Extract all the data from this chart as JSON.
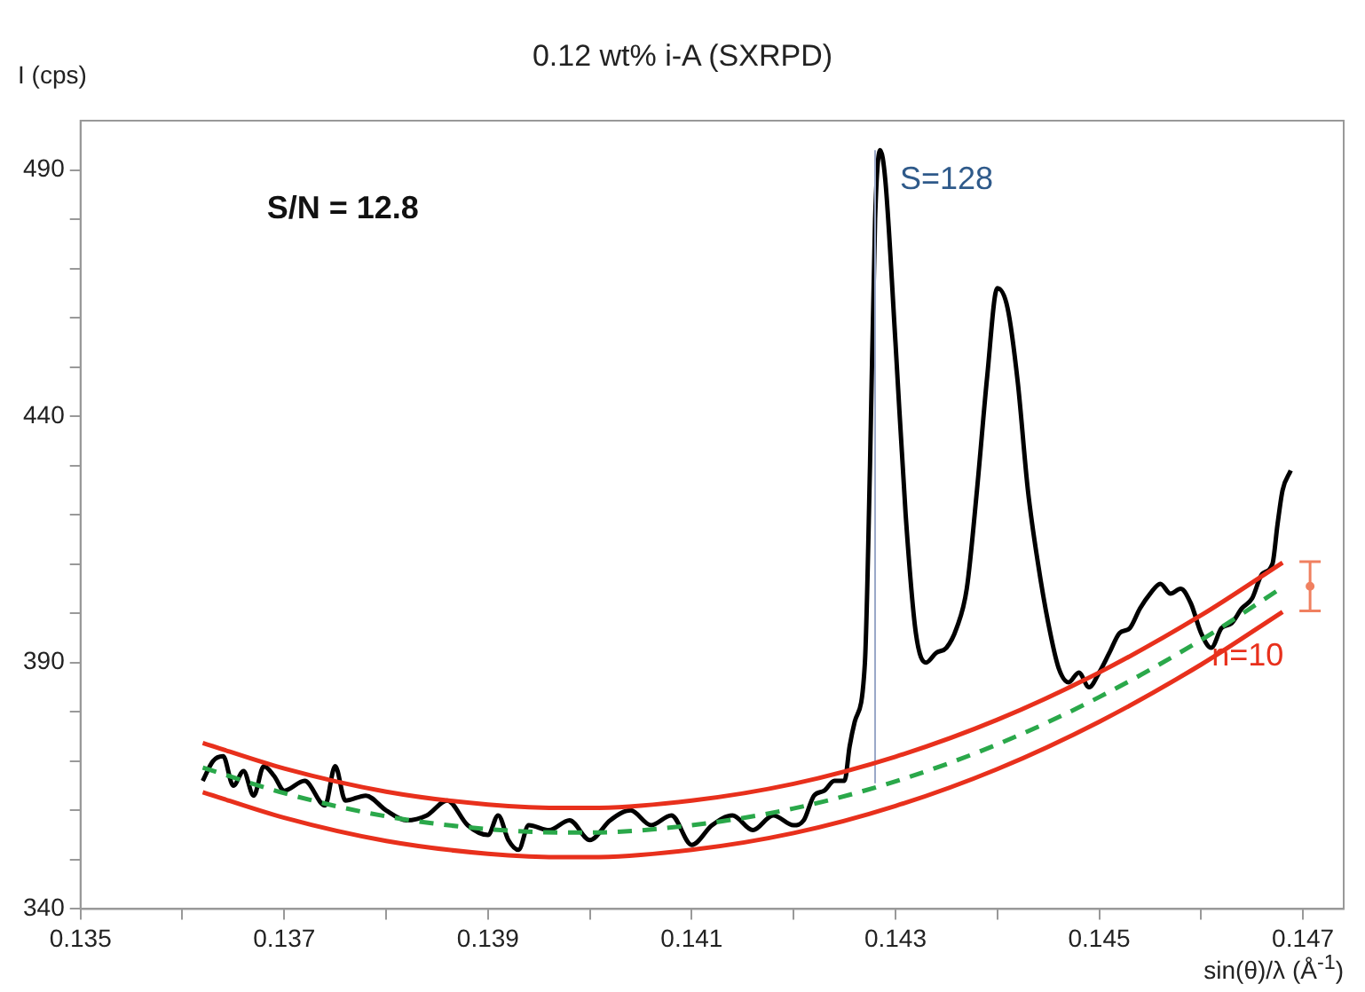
{
  "chart_data": {
    "type": "line",
    "title": "0.12 wt% i-A (SXRPD)",
    "xlabel": "sin(θ)/λ (Å$^{-1}$)",
    "ylabel": "I (cps)",
    "xlim": [
      0.135,
      0.1474
    ],
    "ylim": [
      340,
      500
    ],
    "xticks": [
      0.135,
      {
        "value": 0.136,
        "label": null
      },
      0.137,
      {
        "value": 0.138,
        "label": null
      },
      0.139,
      {
        "value": 0.14,
        "label": null
      },
      0.141,
      {
        "value": 0.142,
        "label": null
      },
      0.143,
      {
        "value": 0.144,
        "label": null
      },
      0.145,
      {
        "value": 0.146,
        "label": null
      },
      0.147
    ],
    "yticks": [
      340,
      {
        "value": 350,
        "label": null
      },
      {
        "value": 360,
        "label": null
      },
      {
        "value": 370,
        "label": null
      },
      {
        "value": 380,
        "label": null
      },
      390,
      {
        "value": 400,
        "label": null
      },
      {
        "value": 410,
        "label": null
      },
      {
        "value": 420,
        "label": null
      },
      {
        "value": 430,
        "label": null
      },
      440,
      {
        "value": 450,
        "label": null
      },
      {
        "value": 460,
        "label": null
      },
      {
        "value": 470,
        "label": null
      },
      {
        "value": 480,
        "label": null
      },
      490
    ],
    "grid": false,
    "legend": false,
    "marker": "none",
    "series": [
      {
        "color": "#e8301c",
        "x": [
          0.1362,
          0.137,
          0.138,
          0.139,
          0.1398,
          0.14,
          0.141,
          0.142,
          0.143,
          0.144,
          0.145,
          0.146,
          0.1468
        ],
        "values": [
          373.7,
          368.5,
          363.8,
          361.2,
          360.5,
          360.5,
          362,
          365.4,
          370.9,
          378.4,
          388,
          399.6,
          410.3
        ]
      },
      {
        "color": "#e8301c",
        "x": [
          0.1362,
          0.137,
          0.138,
          0.139,
          0.1398,
          0.14,
          0.141,
          0.142,
          0.143,
          0.144,
          0.145,
          0.146,
          0.1468
        ],
        "values": [
          363.7,
          358.5,
          353.8,
          351.2,
          350.5,
          350.5,
          352,
          355.4,
          360.9,
          368.4,
          378,
          389.6,
          400.3
        ]
      },
      {
        "color": "#2aa84a",
        "line_style": "dashed",
        "x": [
          0.1362,
          0.137,
          0.138,
          0.139,
          0.1398,
          0.14,
          0.141,
          0.142,
          0.143,
          0.144,
          0.145,
          0.146,
          0.1468
        ],
        "values": [
          368.7,
          363.5,
          358.8,
          356.2,
          355.5,
          355.5,
          357,
          360.4,
          365.9,
          373.4,
          383,
          394.6,
          405.3
        ]
      },
      {
        "color": "#9aa8c8",
        "x": [
          0.1428,
          0.1428
        ],
        "values": [
          365.5,
          494
        ]
      },
      {
        "color": "#000000",
        "x": [
          0.1362,
          0.1363,
          0.1364,
          0.1365,
          0.1366,
          0.1367,
          0.1368,
          0.1369,
          0.137,
          0.1372,
          0.1374,
          0.1375,
          0.1376,
          0.1378,
          0.138,
          0.1382,
          0.1384,
          0.1386,
          0.1388,
          0.139,
          0.1391,
          0.1392,
          0.1393,
          0.1394,
          0.1396,
          0.1398,
          0.14,
          0.1402,
          0.1404,
          0.1406,
          0.1408,
          0.141,
          0.1412,
          0.1414,
          0.1416,
          0.1418,
          0.142,
          0.1421,
          0.1422,
          0.1423,
          0.1424,
          0.1425,
          0.14255,
          0.1426,
          0.1427,
          0.14275,
          0.1428,
          0.14285,
          0.1429,
          0.143,
          0.1431,
          0.1432,
          0.1433,
          0.1434,
          0.1435,
          0.1436,
          0.1437,
          0.1438,
          0.1439,
          0.144,
          0.1441,
          0.1442,
          0.1443,
          0.1444,
          0.1445,
          0.1446,
          0.1447,
          0.1448,
          0.1449,
          0.145,
          0.1451,
          0.1452,
          0.1453,
          0.1454,
          0.1455,
          0.1456,
          0.1457,
          0.1458,
          0.1459,
          0.146,
          0.1461,
          0.1462,
          0.1463,
          0.1464,
          0.1465,
          0.1466,
          0.1467,
          0.14675,
          0.1468,
          0.14688
        ],
        "values": [
          366,
          370,
          371,
          365,
          368,
          363,
          369,
          367,
          364,
          366,
          361,
          369,
          362,
          363,
          360,
          358,
          359,
          362,
          357,
          355,
          359,
          354,
          352,
          357,
          356,
          358,
          354,
          358,
          360,
          357,
          359,
          353,
          357,
          359,
          356,
          359,
          357,
          358,
          363,
          364,
          366,
          366,
          373,
          378,
          390,
          430,
          480,
          494,
          488,
          455,
          420,
          396,
          390,
          392,
          393,
          397,
          405,
          425,
          448,
          466,
          462,
          447,
          425,
          410,
          398,
          389,
          386,
          388,
          385,
          388,
          392,
          396,
          397,
          401,
          404,
          406,
          404,
          405,
          402,
          396,
          393,
          397,
          398,
          401,
          403,
          408,
          410,
          418,
          425,
          429
        ]
      },
      {
        "type": "scatter",
        "marker": "circle",
        "color": "#f08060",
        "x": [
          0.14707
        ],
        "values": [
          405.5
        ],
        "errors": [
          [
            400.5,
            410.5
          ]
        ]
      }
    ],
    "annotations": [
      {
        "text": "S/N = 12.8"
      },
      {
        "text": "S=128",
        "x": 0.1428,
        "y": 494
      },
      {
        "text": "n=10",
        "x": 0.1468,
        "y": 400.3
      }
    ]
  }
}
